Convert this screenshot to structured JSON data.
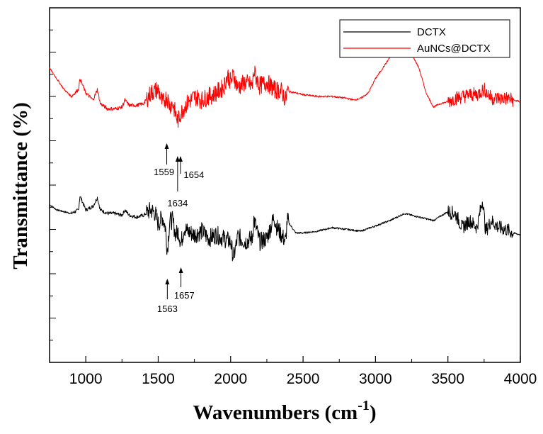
{
  "chart_data": {
    "type": "line",
    "title": "",
    "xlabel": "Wavenumbers (cm",
    "xlabel_sup": "-1",
    "xlabel_close": ")",
    "ylabel": "Transmittance (%)",
    "xlim": [
      750,
      4000
    ],
    "ylim": [
      0,
      100
    ],
    "x_ticks": [
      1000,
      1500,
      2000,
      2500,
      3000,
      3500,
      4000
    ],
    "x_tick_labels": [
      "1000",
      "1500",
      "2000",
      "2500",
      "3000",
      "3500",
      "4000"
    ],
    "y_tick_labels_shown": false,
    "grid": false,
    "legend_position": "top-right",
    "series": [
      {
        "name": "DCTX",
        "color": "#000000",
        "x": [
          750,
          800,
          850,
          900,
          950,
          960,
          1000,
          1050,
          1080,
          1100,
          1150,
          1200,
          1250,
          1270,
          1300,
          1350,
          1400,
          1450,
          1480,
          1500,
          1530,
          1550,
          1563,
          1580,
          1600,
          1620,
          1640,
          1657,
          1680,
          1700,
          1750,
          1800,
          1850,
          1900,
          1950,
          2000,
          2020,
          2050,
          2100,
          2150,
          2160,
          2200,
          2250,
          2300,
          2320,
          2350,
          2380,
          2390,
          2450,
          2500,
          2600,
          2700,
          2800,
          2900,
          3000,
          3100,
          3200,
          3300,
          3400,
          3500,
          3550,
          3600,
          3650,
          3700,
          3740,
          3760,
          3800,
          3850,
          3900,
          3950,
          4000
        ],
        "y": [
          44.5,
          43,
          42.5,
          42,
          43,
          47,
          43,
          44,
          46.5,
          43,
          42,
          42,
          41.5,
          43,
          41.5,
          41,
          41.5,
          43,
          42,
          39,
          41,
          38,
          31.5,
          40,
          40,
          36,
          37,
          33.5,
          38,
          37,
          36,
          37,
          35,
          36,
          35,
          34,
          29.5,
          35.5,
          34,
          35,
          40.5,
          34,
          35,
          41,
          38,
          36,
          34,
          40,
          36.5,
          36.5,
          37,
          38,
          37.5,
          37,
          38.5,
          40,
          42,
          41,
          40,
          42.5,
          42,
          38,
          40,
          38,
          46,
          37,
          40,
          38,
          37.5,
          36.5,
          36
        ]
      },
      {
        "name": "AuNCs@DCTX",
        "color": "#ff0000",
        "x": [
          750,
          800,
          850,
          900,
          950,
          960,
          1000,
          1050,
          1080,
          1100,
          1150,
          1200,
          1250,
          1270,
          1300,
          1350,
          1400,
          1450,
          1500,
          1530,
          1559,
          1580,
          1600,
          1634,
          1654,
          1680,
          1700,
          1750,
          1800,
          1850,
          1900,
          1950,
          1980,
          2000,
          2020,
          2050,
          2100,
          2150,
          2160,
          2200,
          2250,
          2300,
          2350,
          2380,
          2390,
          2450,
          2500,
          2600,
          2700,
          2800,
          2850,
          2900,
          2950,
          3000,
          3100,
          3150,
          3200,
          3250,
          3300,
          3350,
          3400,
          3450,
          3500,
          3550,
          3600,
          3650,
          3700,
          3750,
          3800,
          3850,
          3900,
          3950,
          4000
        ],
        "y": [
          83,
          80,
          77,
          75,
          77,
          80,
          76,
          74,
          77,
          73,
          71.5,
          71.5,
          72,
          74,
          72.5,
          72.5,
          73,
          76,
          77,
          73,
          75,
          72.5,
          73,
          68,
          70,
          72,
          73,
          75,
          74,
          75,
          76,
          77.5,
          81,
          79,
          81,
          77.5,
          79,
          78,
          82,
          78,
          79,
          77,
          76.5,
          74,
          76.5,
          76,
          75.5,
          75,
          75,
          74.5,
          74,
          74.5,
          76,
          80,
          86,
          88,
          89,
          87,
          83,
          76,
          72,
          73,
          73.5,
          74.5,
          75,
          75.5,
          75.5,
          77,
          74.5,
          74.5,
          74.5,
          74,
          73.5
        ]
      }
    ],
    "annotations": [
      {
        "label": "1559",
        "x": 1559,
        "series": "AuNCs@DCTX"
      },
      {
        "label": "1634",
        "x": 1634,
        "series": "AuNCs@DCTX"
      },
      {
        "label": "1654",
        "x": 1654,
        "series": "AuNCs@DCTX"
      },
      {
        "label": "1563",
        "x": 1563,
        "series": "DCTX"
      },
      {
        "label": "1657",
        "x": 1657,
        "series": "DCTX"
      }
    ]
  }
}
